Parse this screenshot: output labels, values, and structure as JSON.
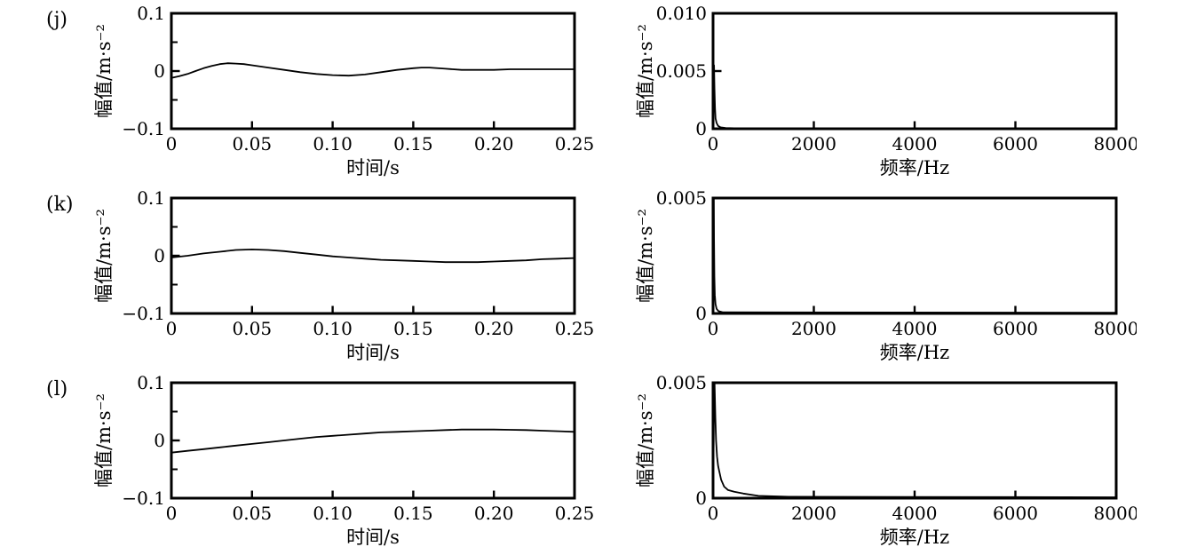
{
  "figure": {
    "background": "#ffffff",
    "ink_color": "#000000"
  },
  "rows": [
    {
      "label": "(j)"
    },
    {
      "label": "(k)"
    },
    {
      "label": "(l)"
    }
  ],
  "chart_data": [
    {
      "id": "j-time",
      "type": "line",
      "panel": "(j)",
      "xlabel": "时间/s",
      "ylabel": "幅值/m·s⁻²",
      "xlim": [
        0,
        0.25
      ],
      "ylim": [
        -0.1,
        0.1
      ],
      "xticks": [
        {
          "v": 0,
          "label": "0"
        },
        {
          "v": 0.05,
          "label": "0.05"
        },
        {
          "v": 0.1,
          "label": "0.10"
        },
        {
          "v": 0.15,
          "label": "0.15"
        },
        {
          "v": 0.2,
          "label": "0.20"
        },
        {
          "v": 0.25,
          "label": "0.25"
        }
      ],
      "yticks": [
        {
          "v": -0.1,
          "label": "−0.1"
        },
        {
          "v": 0,
          "label": "0"
        },
        {
          "v": 0.1,
          "label": "0.1"
        }
      ],
      "yticks_minor": [
        -0.05,
        0.05
      ],
      "grid": false,
      "legend": null,
      "points": [
        [
          0,
          -0.012
        ],
        [
          0.005,
          -0.009
        ],
        [
          0.01,
          -0.005
        ],
        [
          0.015,
          0.0
        ],
        [
          0.02,
          0.005
        ],
        [
          0.025,
          0.009
        ],
        [
          0.03,
          0.012
        ],
        [
          0.035,
          0.0135
        ],
        [
          0.04,
          0.013
        ],
        [
          0.045,
          0.012
        ],
        [
          0.05,
          0.01
        ],
        [
          0.06,
          0.006
        ],
        [
          0.07,
          0.002
        ],
        [
          0.08,
          -0.002
        ],
        [
          0.09,
          -0.005
        ],
        [
          0.1,
          -0.007
        ],
        [
          0.11,
          -0.008
        ],
        [
          0.12,
          -0.006
        ],
        [
          0.13,
          -0.002
        ],
        [
          0.14,
          0.002
        ],
        [
          0.15,
          0.005
        ],
        [
          0.155,
          0.006
        ],
        [
          0.16,
          0.006
        ],
        [
          0.17,
          0.004
        ],
        [
          0.18,
          0.002
        ],
        [
          0.19,
          0.002
        ],
        [
          0.2,
          0.002
        ],
        [
          0.21,
          0.003
        ],
        [
          0.22,
          0.003
        ],
        [
          0.23,
          0.003
        ],
        [
          0.24,
          0.003
        ],
        [
          0.25,
          0.003
        ]
      ]
    },
    {
      "id": "j-freq",
      "type": "line",
      "panel": "(j)",
      "xlabel": "频率/Hz",
      "ylabel": "幅值/m·s⁻²",
      "xlim": [
        0,
        8000
      ],
      "ylim": [
        0,
        0.01
      ],
      "xticks": [
        {
          "v": 0,
          "label": "0"
        },
        {
          "v": 2000,
          "label": "2000"
        },
        {
          "v": 4000,
          "label": "4000"
        },
        {
          "v": 6000,
          "label": "6000"
        },
        {
          "v": 8000,
          "label": "8000"
        }
      ],
      "yticks": [
        {
          "v": 0,
          "label": "0"
        },
        {
          "v": 0.005,
          "label": "0.005"
        },
        {
          "v": 0.01,
          "label": "0.010"
        }
      ],
      "yticks_minor": [],
      "grid": false,
      "legend": null,
      "points": [
        [
          0,
          0.0003
        ],
        [
          8,
          0.002
        ],
        [
          15,
          0.0045
        ],
        [
          20,
          0.0055
        ],
        [
          28,
          0.0035
        ],
        [
          38,
          0.0018
        ],
        [
          50,
          0.0009
        ],
        [
          70,
          0.0005
        ],
        [
          100,
          0.00025
        ],
        [
          150,
          0.00012
        ],
        [
          250,
          6e-05
        ],
        [
          500,
          4e-05
        ],
        [
          8000,
          3e-05
        ]
      ]
    },
    {
      "id": "k-time",
      "type": "line",
      "panel": "(k)",
      "xlabel": "时间/s",
      "ylabel": "幅值/m·s⁻²",
      "xlim": [
        0,
        0.25
      ],
      "ylim": [
        -0.1,
        0.1
      ],
      "xticks": [
        {
          "v": 0,
          "label": "0"
        },
        {
          "v": 0.05,
          "label": "0.05"
        },
        {
          "v": 0.1,
          "label": "0.10"
        },
        {
          "v": 0.15,
          "label": "0.15"
        },
        {
          "v": 0.2,
          "label": "0.20"
        },
        {
          "v": 0.25,
          "label": "0.25"
        }
      ],
      "yticks": [
        {
          "v": -0.1,
          "label": "−0.1"
        },
        {
          "v": 0,
          "label": "0"
        },
        {
          "v": 0.1,
          "label": "0.1"
        }
      ],
      "yticks_minor": [
        -0.05,
        0.05
      ],
      "grid": false,
      "legend": null,
      "points": [
        [
          0,
          -0.003
        ],
        [
          0.01,
          0.0
        ],
        [
          0.02,
          0.004
        ],
        [
          0.03,
          0.007
        ],
        [
          0.04,
          0.01
        ],
        [
          0.05,
          0.011
        ],
        [
          0.06,
          0.01
        ],
        [
          0.07,
          0.008
        ],
        [
          0.08,
          0.005
        ],
        [
          0.09,
          0.002
        ],
        [
          0.1,
          -0.001
        ],
        [
          0.11,
          -0.003
        ],
        [
          0.12,
          -0.005
        ],
        [
          0.13,
          -0.007
        ],
        [
          0.14,
          -0.008
        ],
        [
          0.15,
          -0.009
        ],
        [
          0.16,
          -0.01
        ],
        [
          0.17,
          -0.011
        ],
        [
          0.18,
          -0.011
        ],
        [
          0.19,
          -0.011
        ],
        [
          0.2,
          -0.01
        ],
        [
          0.21,
          -0.009
        ],
        [
          0.22,
          -0.008
        ],
        [
          0.23,
          -0.006
        ],
        [
          0.24,
          -0.005
        ],
        [
          0.25,
          -0.004
        ]
      ]
    },
    {
      "id": "k-freq",
      "type": "line",
      "panel": "(k)",
      "xlabel": "频率/Hz",
      "ylabel": "幅值/m·s⁻²",
      "xlim": [
        0,
        8000
      ],
      "ylim": [
        0,
        0.005
      ],
      "xticks": [
        {
          "v": 0,
          "label": "0"
        },
        {
          "v": 2000,
          "label": "2000"
        },
        {
          "v": 4000,
          "label": "4000"
        },
        {
          "v": 6000,
          "label": "6000"
        },
        {
          "v": 8000,
          "label": "8000"
        }
      ],
      "yticks": [
        {
          "v": 0,
          "label": "0"
        },
        {
          "v": 0.005,
          "label": "0.005"
        }
      ],
      "yticks_minor": [],
      "grid": false,
      "legend": null,
      "points": [
        [
          0,
          0.0003
        ],
        [
          6,
          0.0018
        ],
        [
          10,
          0.0035
        ],
        [
          15,
          0.005
        ],
        [
          20,
          0.0032
        ],
        [
          27,
          0.0016
        ],
        [
          36,
          0.0008
        ],
        [
          50,
          0.0004
        ],
        [
          70,
          0.0002
        ],
        [
          110,
          0.0001
        ],
        [
          200,
          5e-05
        ],
        [
          8000,
          3e-05
        ]
      ]
    },
    {
      "id": "l-time",
      "type": "line",
      "panel": "(l)",
      "xlabel": "时间/s",
      "ylabel": "幅值/m·s⁻²",
      "xlim": [
        0,
        0.25
      ],
      "ylim": [
        -0.1,
        0.1
      ],
      "xticks": [
        {
          "v": 0,
          "label": "0"
        },
        {
          "v": 0.05,
          "label": "0.05"
        },
        {
          "v": 0.1,
          "label": "0.10"
        },
        {
          "v": 0.15,
          "label": "0.15"
        },
        {
          "v": 0.2,
          "label": "0.20"
        },
        {
          "v": 0.25,
          "label": "0.25"
        }
      ],
      "yticks": [
        {
          "v": -0.1,
          "label": "−0.1"
        },
        {
          "v": 0,
          "label": "0"
        },
        {
          "v": 0.1,
          "label": "0.1"
        }
      ],
      "yticks_minor": [
        -0.05,
        0.05
      ],
      "grid": false,
      "legend": null,
      "points": [
        [
          0,
          -0.021
        ],
        [
          0.01,
          -0.018
        ],
        [
          0.02,
          -0.015
        ],
        [
          0.03,
          -0.012
        ],
        [
          0.04,
          -0.009
        ],
        [
          0.05,
          -0.006
        ],
        [
          0.06,
          -0.003
        ],
        [
          0.07,
          0.0
        ],
        [
          0.08,
          0.003
        ],
        [
          0.09,
          0.006
        ],
        [
          0.1,
          0.008
        ],
        [
          0.11,
          0.01
        ],
        [
          0.12,
          0.012
        ],
        [
          0.13,
          0.014
        ],
        [
          0.14,
          0.015
        ],
        [
          0.15,
          0.016
        ],
        [
          0.16,
          0.017
        ],
        [
          0.17,
          0.018
        ],
        [
          0.18,
          0.019
        ],
        [
          0.19,
          0.019
        ],
        [
          0.2,
          0.019
        ],
        [
          0.21,
          0.0185
        ],
        [
          0.22,
          0.018
        ],
        [
          0.23,
          0.017
        ],
        [
          0.24,
          0.016
        ],
        [
          0.25,
          0.015
        ]
      ]
    },
    {
      "id": "l-freq",
      "type": "line",
      "panel": "(l)",
      "xlabel": "频率/Hz",
      "ylabel": "幅值/m·s⁻²",
      "xlim": [
        0,
        8000
      ],
      "ylim": [
        0,
        0.005
      ],
      "xticks": [
        {
          "v": 0,
          "label": "0"
        },
        {
          "v": 2000,
          "label": "2000"
        },
        {
          "v": 4000,
          "label": "4000"
        },
        {
          "v": 6000,
          "label": "6000"
        },
        {
          "v": 8000,
          "label": "8000"
        }
      ],
      "yticks": [
        {
          "v": 0,
          "label": "0"
        },
        {
          "v": 0.005,
          "label": "0.005"
        }
      ],
      "yticks_minor": [],
      "grid": false,
      "legend": null,
      "points": [
        [
          0,
          0.0004
        ],
        [
          10,
          0.002
        ],
        [
          20,
          0.004
        ],
        [
          30,
          0.005
        ],
        [
          45,
          0.0035
        ],
        [
          60,
          0.0025
        ],
        [
          80,
          0.0018
        ],
        [
          100,
          0.0014
        ],
        [
          120,
          0.0012
        ],
        [
          160,
          0.0008
        ],
        [
          220,
          0.0005
        ],
        [
          300,
          0.00035
        ],
        [
          420,
          0.00028
        ],
        [
          600,
          0.0002
        ],
        [
          900,
          0.0001
        ],
        [
          1500,
          6e-05
        ],
        [
          8000,
          4e-05
        ]
      ]
    }
  ]
}
